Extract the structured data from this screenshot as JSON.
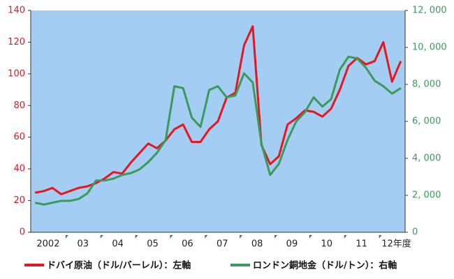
{
  "chart_data": {
    "type": "line",
    "categories": [
      null,
      "2002",
      null,
      null,
      null,
      "03",
      null,
      null,
      null,
      "04",
      null,
      null,
      null,
      "05",
      null,
      null,
      null,
      "06",
      null,
      null,
      null,
      "07",
      null,
      null,
      null,
      "08",
      null,
      null,
      null,
      "09",
      null,
      null,
      null,
      "10",
      null,
      null,
      null,
      "11",
      null,
      null,
      null,
      "12年度",
      null
    ],
    "series": [
      {
        "name": "ドバイ原油（ドル/バーレル）：左軸",
        "color": "#e8141e",
        "values": [
          25,
          26,
          28,
          24,
          26,
          28,
          29,
          31,
          34,
          38,
          37,
          44,
          50,
          56,
          53,
          58,
          65,
          68,
          57,
          57,
          65,
          70,
          85,
          88,
          118,
          130,
          55,
          43,
          48,
          68,
          72,
          77,
          76,
          73,
          78,
          90,
          105,
          110,
          106,
          108,
          120,
          95,
          108
        ]
      },
      {
        "name": "ロンドン銅地金（ドル/トン）：右軸",
        "color": "#3a9a5a",
        "axis": "y2",
        "values": [
          1600,
          1500,
          1600,
          1700,
          1700,
          1800,
          2100,
          2800,
          2800,
          2900,
          3100,
          3200,
          3400,
          3800,
          4300,
          5000,
          7900,
          7800,
          6200,
          5700,
          7700,
          7900,
          7300,
          7400,
          8600,
          8100,
          4800,
          3100,
          3700,
          5000,
          6000,
          6500,
          7300,
          6800,
          7200,
          8800,
          9500,
          9400,
          8900,
          8200,
          7900,
          7500,
          7800
        ]
      }
    ],
    "ylim": [
      0,
      140
    ],
    "yticks": [
      0,
      20,
      40,
      60,
      80,
      100,
      120,
      140
    ],
    "y2lim": [
      0,
      12000
    ],
    "y2ticks": [
      0,
      {
        "value": 2000,
        "label": "2, 000"
      },
      {
        "value": 4000,
        "label": "4, 000"
      },
      {
        "value": 6000,
        "label": "6, 000"
      },
      {
        "value": 8000,
        "label": "8, 000"
      },
      {
        "value": 10000,
        "label": "10, 000"
      },
      {
        "value": 12000,
        "label": "12, 000"
      }
    ],
    "background": "#a3cdf3"
  }
}
